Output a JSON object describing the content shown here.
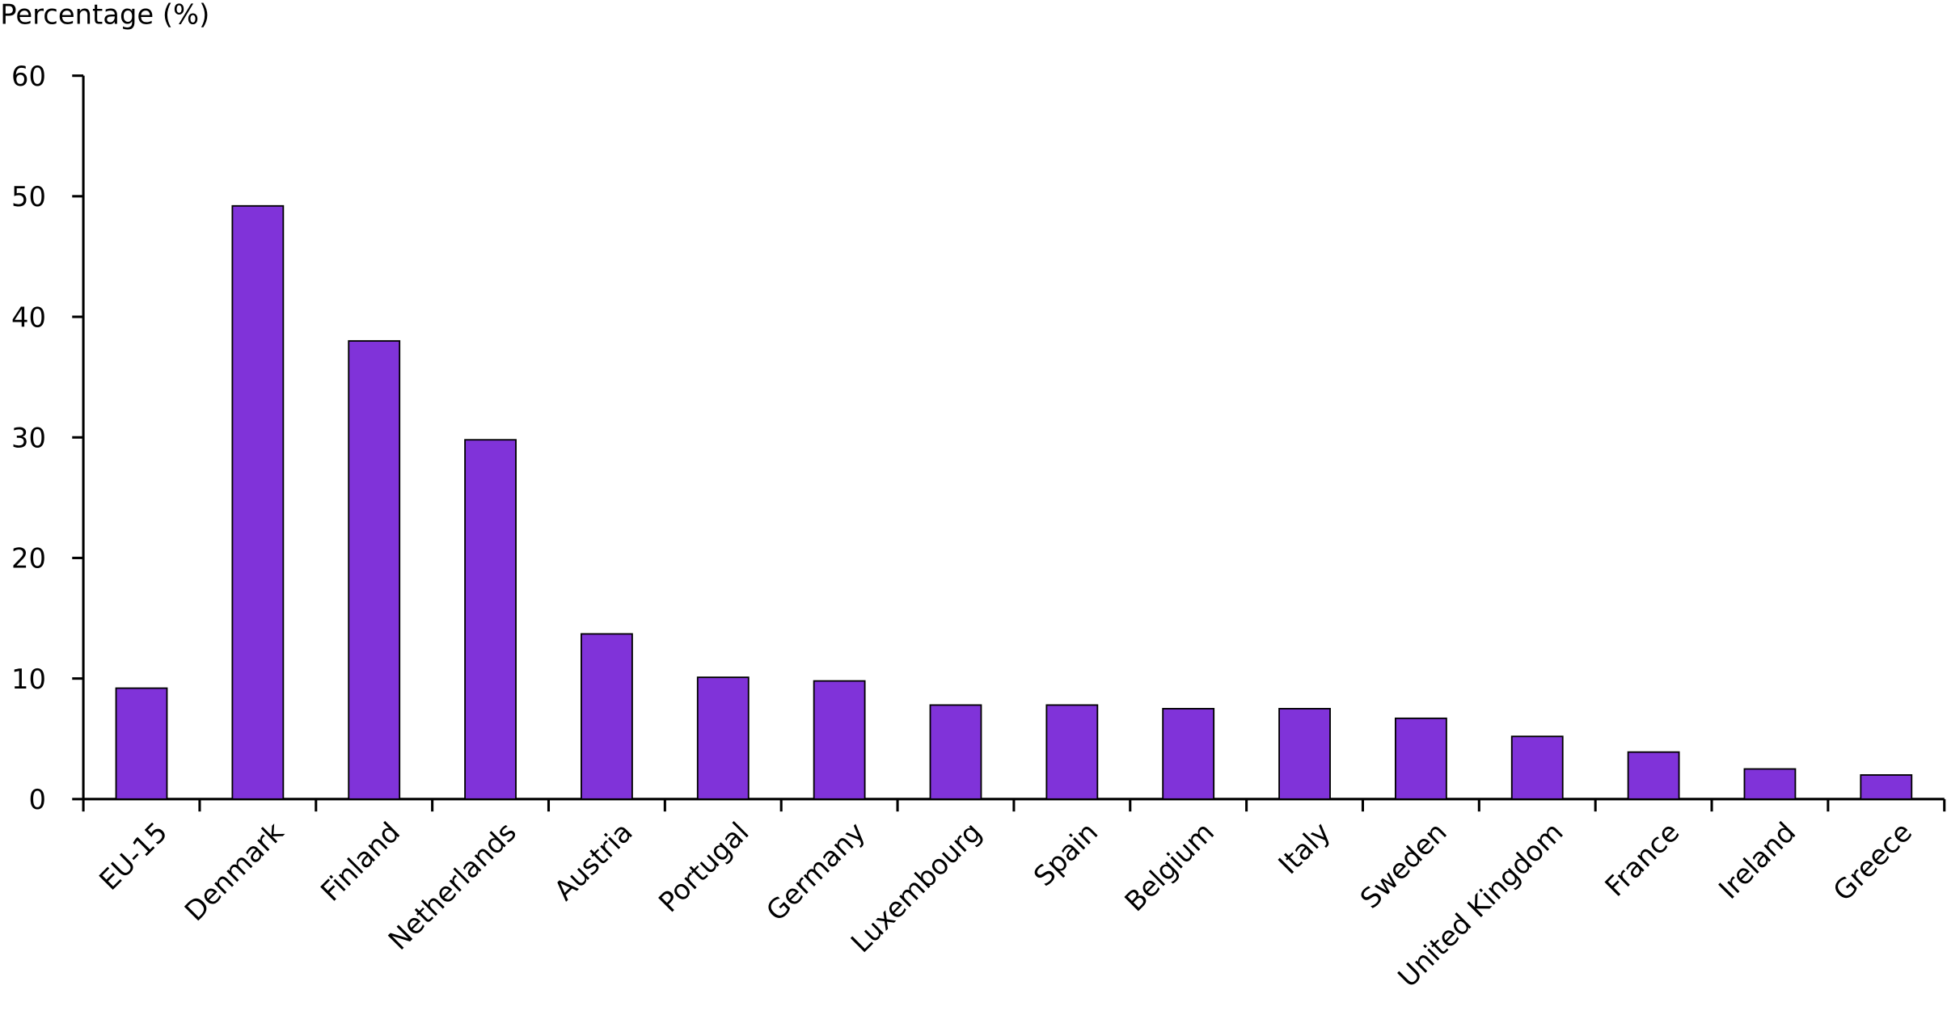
{
  "chart_data": {
    "type": "bar",
    "y_label": "Percentage (%)",
    "categories": [
      "EU-15",
      "Denmark",
      "Finland",
      "Netherlands",
      "Austria",
      "Portugal",
      "Germany",
      "Luxembourg",
      "Spain",
      "Belgium",
      "Italy",
      "Sweden",
      "United Kingdom",
      "France",
      "Ireland",
      "Greece"
    ],
    "values": [
      9.2,
      49.2,
      38.0,
      29.8,
      13.7,
      10.1,
      9.8,
      7.8,
      7.8,
      7.5,
      7.5,
      6.7,
      5.2,
      3.9,
      2.5,
      2.0
    ],
    "color": "#8033d9",
    "ylim": [
      0,
      60
    ],
    "yticks": [
      0,
      10,
      20,
      30,
      40,
      50,
      60
    ],
    "grid": false
  }
}
